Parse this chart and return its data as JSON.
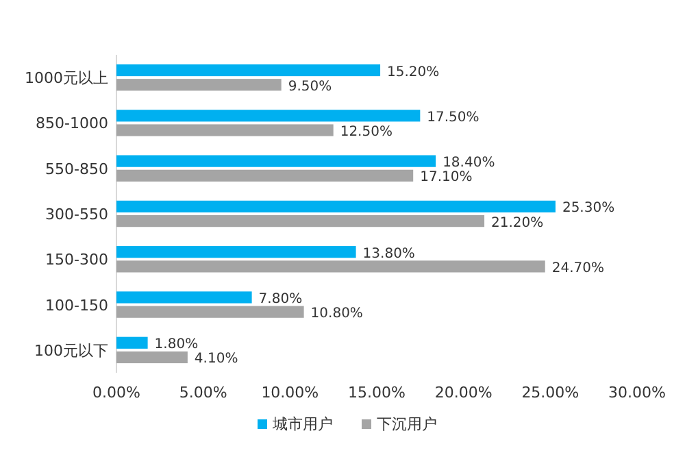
{
  "chart_data": {
    "type": "bar",
    "orientation": "horizontal",
    "categories": [
      "1000元以上",
      "850-1000",
      "550-850",
      "300-550",
      "150-300",
      "100-150",
      "100元以下"
    ],
    "series": [
      {
        "name": "城市用户",
        "color": "#00b0f0",
        "values": [
          15.2,
          17.5,
          18.4,
          25.3,
          13.8,
          7.8,
          1.8
        ],
        "value_labels": [
          "15.20%",
          "17.50%",
          "18.40%",
          "25.30%",
          "13.80%",
          "7.80%",
          "1.80%"
        ]
      },
      {
        "name": "下沉用户",
        "color": "#a5a5a5",
        "values": [
          9.5,
          12.5,
          17.1,
          21.2,
          24.7,
          10.8,
          4.1
        ],
        "value_labels": [
          "9.50%",
          "12.50%",
          "17.10%",
          "21.20%",
          "24.70%",
          "10.80%",
          "4.10%"
        ]
      }
    ],
    "xlim": [
      0,
      30
    ],
    "xticks": [
      {
        "value": 0,
        "label": "0.00%"
      },
      {
        "value": 5,
        "label": "5.00%"
      },
      {
        "value": 10,
        "label": "10.00%"
      },
      {
        "value": 15,
        "label": "15.00%"
      },
      {
        "value": 20,
        "label": "20.00%"
      },
      {
        "value": 25,
        "label": "25.00%"
      },
      {
        "value": 30,
        "label": "30.00%"
      }
    ],
    "grid": false,
    "legend": "bottom"
  }
}
